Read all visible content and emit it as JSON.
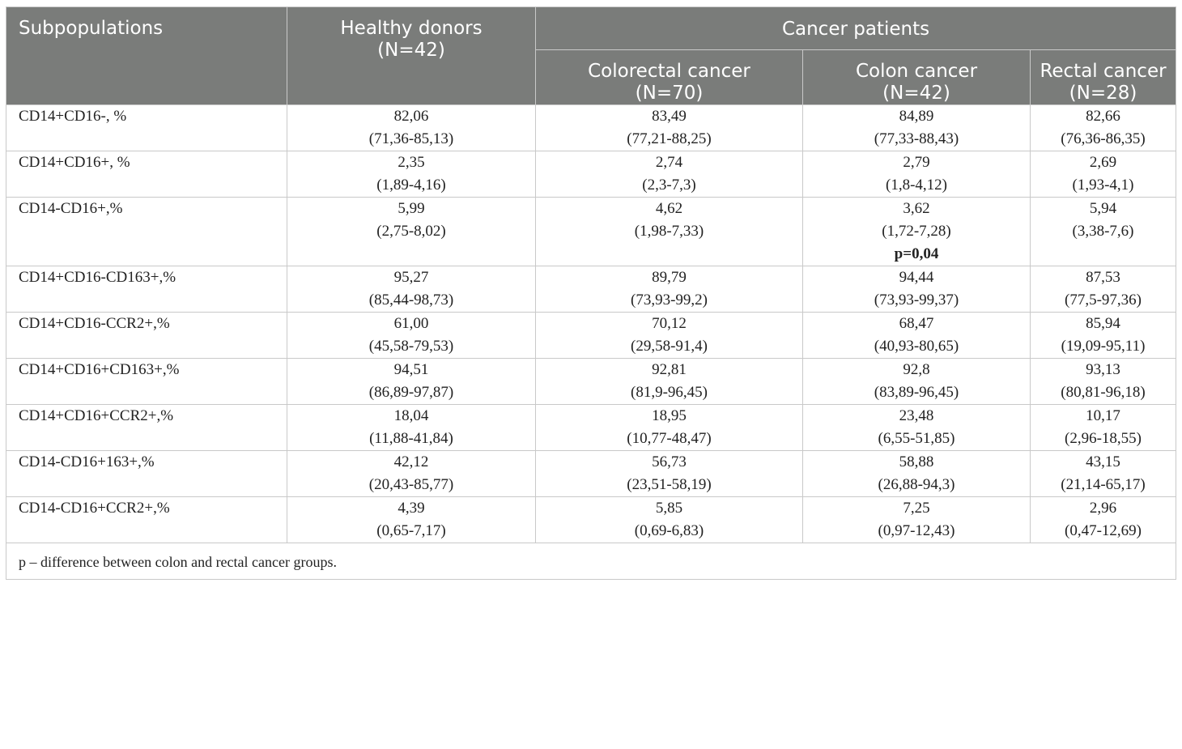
{
  "table": {
    "headers": {
      "subpopulations": "Subpopulations",
      "healthy_donors": "Healthy donors",
      "healthy_n": "(N=42)",
      "cancer_patients": "Cancer patients",
      "colorectal": "Colorectal cancer",
      "colorectal_n": "(N=70)",
      "colon": "Colon cancer",
      "colon_n": "(N=42)",
      "rectal": "Rectal cancer",
      "rectal_n": "(N=28)"
    },
    "rows": [
      {
        "label": "CD14+CD16-, %",
        "healthy": [
          "82,06",
          "(71,36-85,13)"
        ],
        "colorectal": [
          "83,49",
          "(77,21-88,25)"
        ],
        "colon": [
          "84,89",
          "(77,33-88,43)"
        ],
        "rectal": [
          "82,66",
          "(76,36-86,35)"
        ]
      },
      {
        "label": "CD14+CD16+, %",
        "healthy": [
          "2,35",
          "(1,89-4,16)"
        ],
        "colorectal": [
          "2,74",
          "(2,3-7,3)"
        ],
        "colon": [
          "2,79",
          "(1,8-4,12)"
        ],
        "rectal": [
          "2,69",
          "(1,93-4,1)"
        ]
      },
      {
        "label": "CD14-CD16+,%",
        "healthy": [
          "5,99",
          "(2,75-8,02)"
        ],
        "colorectal": [
          "4,62",
          "(1,98-7,33)"
        ],
        "colon": [
          "3,62",
          "(1,72-7,28)"
        ],
        "colon_p": "p=0,04",
        "rectal": [
          "5,94",
          "(3,38-7,6)"
        ]
      },
      {
        "label": "CD14+CD16-CD163+,%",
        "healthy": [
          "95,27",
          "(85,44-98,73)"
        ],
        "colorectal": [
          "89,79",
          "(73,93-99,2)"
        ],
        "colon": [
          "94,44",
          "(73,93-99,37)"
        ],
        "rectal": [
          "87,53",
          "(77,5-97,36)"
        ]
      },
      {
        "label": "CD14+CD16-CCR2+,%",
        "healthy": [
          "61,00",
          "(45,58-79,53)"
        ],
        "colorectal": [
          "70,12",
          "(29,58-91,4)"
        ],
        "colon": [
          "68,47",
          "(40,93-80,65)"
        ],
        "rectal": [
          "85,94",
          "(19,09-95,11)"
        ]
      },
      {
        "label": "CD14+CD16+CD163+,%",
        "healthy": [
          "94,51",
          "(86,89-97,87)"
        ],
        "colorectal": [
          "92,81",
          "(81,9-96,45)"
        ],
        "colon": [
          "92,8",
          "(83,89-96,45)"
        ],
        "rectal": [
          "93,13",
          "(80,81-96,18)"
        ]
      },
      {
        "label": "CD14+CD16+CCR2+,%",
        "healthy": [
          "18,04",
          "(11,88-41,84)"
        ],
        "colorectal": [
          "18,95",
          "(10,77-48,47)"
        ],
        "colon": [
          "23,48",
          "(6,55-51,85)"
        ],
        "rectal": [
          "10,17",
          "(2,96-18,55)"
        ]
      },
      {
        "label": "CD14-CD16+163+,%",
        "healthy": [
          "42,12",
          "(20,43-85,77)"
        ],
        "colorectal": [
          "56,73",
          "(23,51-58,19)"
        ],
        "colon": [
          "58,88",
          "(26,88-94,3)"
        ],
        "rectal": [
          "43,15",
          "(21,14-65,17)"
        ]
      },
      {
        "label": "CD14-CD16+CCR2+,%",
        "healthy": [
          "4,39",
          "(0,65-7,17)"
        ],
        "colorectal": [
          "5,85",
          "(0,69-6,83)"
        ],
        "colon": [
          "7,25",
          "(0,97-12,43)"
        ],
        "rectal": [
          "2,96",
          "(0,47-12,69)"
        ]
      }
    ],
    "footnote": "p – difference between colon and rectal cancer groups."
  }
}
